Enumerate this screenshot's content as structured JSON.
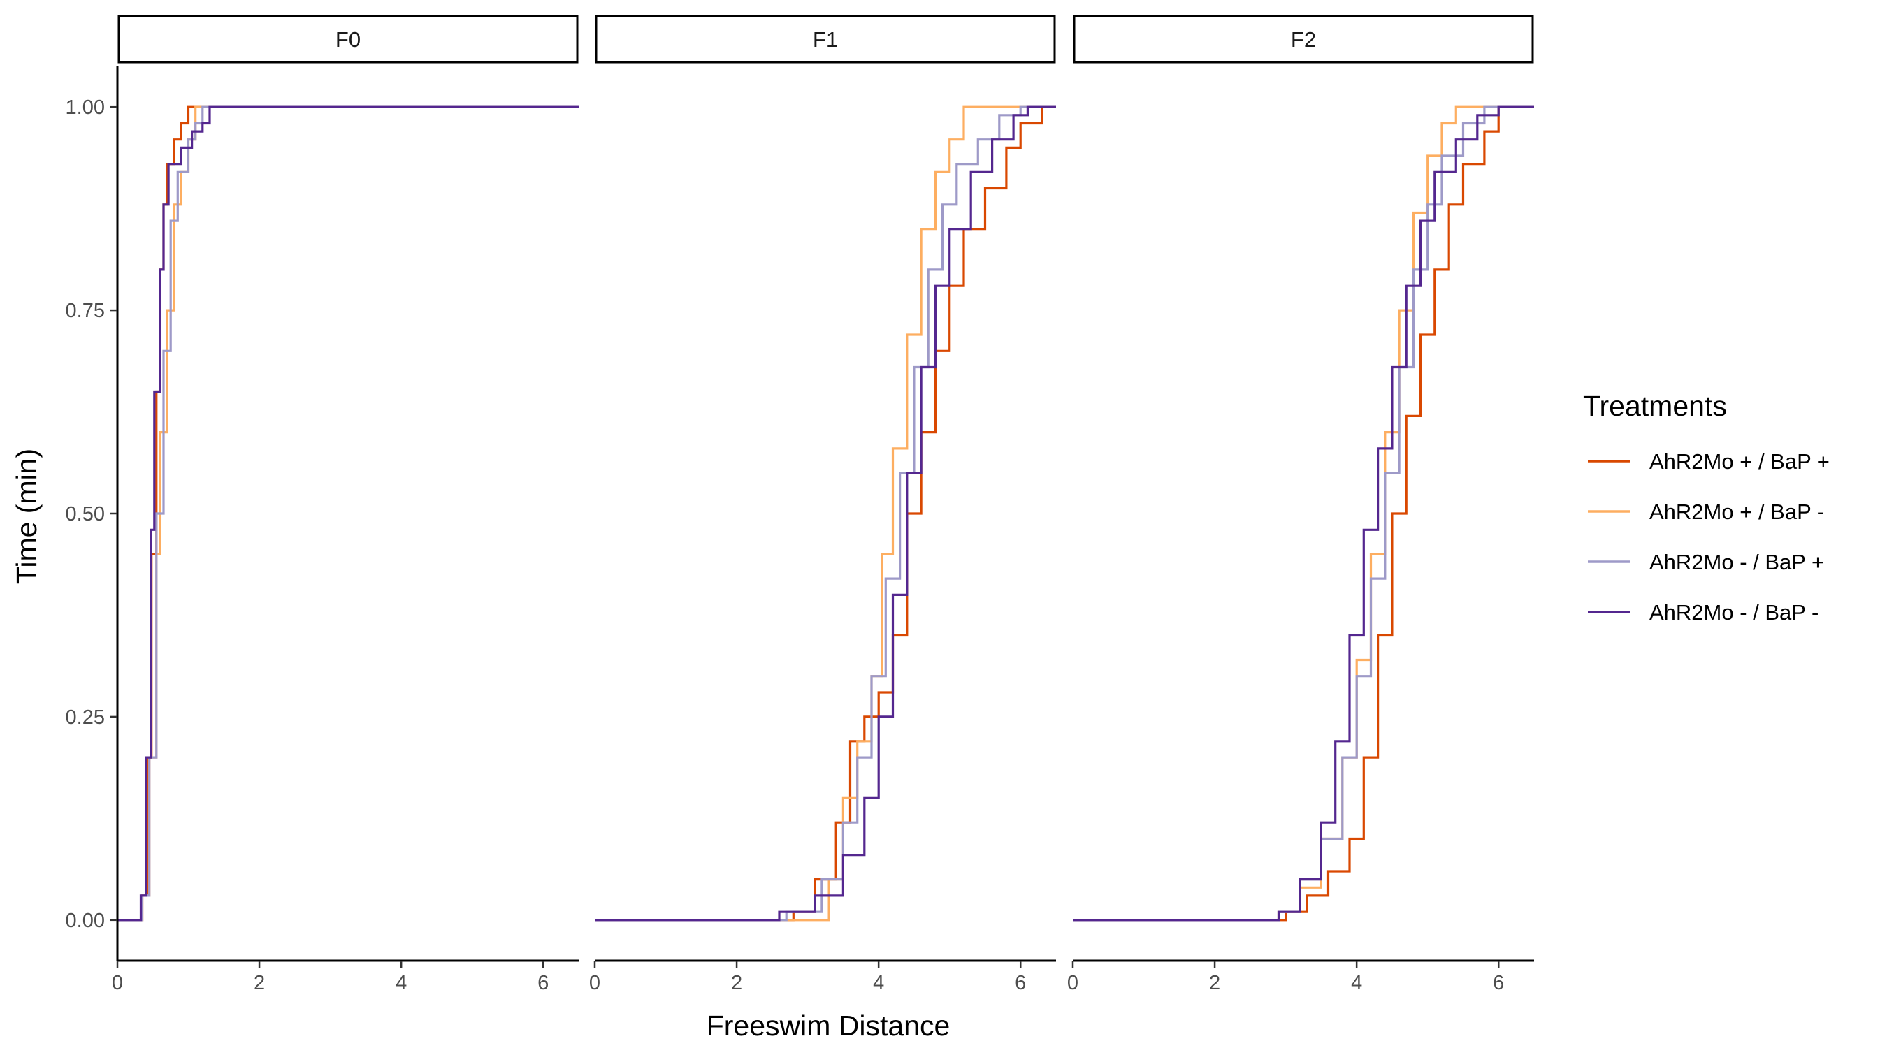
{
  "chart_data": {
    "type": "line",
    "step": true,
    "xlabel": "Freeswim Distance",
    "ylabel": "Time (min)",
    "xlim": [
      0,
      6.5
    ],
    "ylim": [
      -0.05,
      1.05
    ],
    "xticks": [
      0,
      2,
      4,
      6
    ],
    "yticks": [
      0.0,
      0.25,
      0.5,
      0.75,
      1.0
    ],
    "ytick_labels": [
      "0.00",
      "0.25",
      "0.50",
      "0.75",
      "1.00"
    ],
    "grid": false,
    "legend": {
      "title": "Treatments",
      "position": "right",
      "entries": [
        {
          "name": "AhR2Mo + / BaP +",
          "color": "#D94801"
        },
        {
          "name": "AhR2Mo + / BaP -",
          "color": "#FDAE61"
        },
        {
          "name": "AhR2Mo - / BaP +",
          "color": "#9E9AC8"
        },
        {
          "name": "AhR2Mo - / BaP -",
          "color": "#54278F"
        }
      ]
    },
    "panels": [
      {
        "label": "F0",
        "series": [
          {
            "name": "AhR2Mo + / BaP +",
            "color": "#D94801",
            "x": [
              0,
              0.35,
              0.42,
              0.48,
              0.55,
              0.6,
              0.65,
              0.7,
              0.8,
              0.9,
              1.0,
              6.5
            ],
            "y": [
              0,
              0.03,
              0.2,
              0.45,
              0.65,
              0.8,
              0.88,
              0.93,
              0.96,
              0.98,
              1.0,
              1.0
            ]
          },
          {
            "name": "AhR2Mo + / BaP -",
            "color": "#FDAE61",
            "x": [
              0,
              0.35,
              0.45,
              0.55,
              0.6,
              0.7,
              0.8,
              0.9,
              1.0,
              1.1,
              6.5
            ],
            "y": [
              0,
              0.03,
              0.2,
              0.45,
              0.6,
              0.75,
              0.88,
              0.92,
              0.96,
              1.0,
              1.0
            ]
          },
          {
            "name": "AhR2Mo - / BaP +",
            "color": "#9E9AC8",
            "x": [
              0,
              0.35,
              0.45,
              0.55,
              0.65,
              0.75,
              0.85,
              1.0,
              1.1,
              1.2,
              6.5
            ],
            "y": [
              0,
              0.03,
              0.2,
              0.5,
              0.7,
              0.86,
              0.92,
              0.96,
              0.98,
              1.0,
              1.0
            ]
          },
          {
            "name": "AhR2Mo - / BaP -",
            "color": "#54278F",
            "x": [
              0,
              0.33,
              0.4,
              0.47,
              0.52,
              0.6,
              0.65,
              0.72,
              0.9,
              1.05,
              1.2,
              1.3,
              6.5
            ],
            "y": [
              0,
              0.03,
              0.2,
              0.48,
              0.65,
              0.8,
              0.88,
              0.93,
              0.95,
              0.97,
              0.98,
              1.0,
              1.0
            ]
          }
        ]
      },
      {
        "label": "F1",
        "series": [
          {
            "name": "AhR2Mo + / BaP +",
            "color": "#D94801",
            "x": [
              0,
              2.8,
              3.1,
              3.4,
              3.6,
              3.8,
              4.0,
              4.2,
              4.4,
              4.6,
              4.8,
              5.0,
              5.2,
              5.5,
              5.8,
              6.0,
              6.3,
              6.5
            ],
            "y": [
              0,
              0.01,
              0.05,
              0.12,
              0.22,
              0.25,
              0.28,
              0.35,
              0.5,
              0.6,
              0.7,
              0.78,
              0.85,
              0.9,
              0.95,
              0.98,
              1.0,
              1.0
            ]
          },
          {
            "name": "AhR2Mo + / BaP -",
            "color": "#FDAE61",
            "x": [
              0,
              2.6,
              3.3,
              3.5,
              3.7,
              3.9,
              4.05,
              4.2,
              4.4,
              4.6,
              4.8,
              5.0,
              5.2,
              6.5
            ],
            "y": [
              0,
              0.0,
              0.05,
              0.15,
              0.22,
              0.3,
              0.45,
              0.58,
              0.72,
              0.85,
              0.92,
              0.96,
              1.0,
              1.0
            ]
          },
          {
            "name": "AhR2Mo - / BaP +",
            "color": "#9E9AC8",
            "x": [
              0,
              2.7,
              3.2,
              3.5,
              3.7,
              3.9,
              4.1,
              4.3,
              4.5,
              4.7,
              4.9,
              5.1,
              5.4,
              5.7,
              6.0,
              6.5
            ],
            "y": [
              0,
              0.01,
              0.05,
              0.12,
              0.2,
              0.3,
              0.42,
              0.55,
              0.68,
              0.8,
              0.88,
              0.93,
              0.96,
              0.99,
              1.0,
              1.0
            ]
          },
          {
            "name": "AhR2Mo - / BaP -",
            "color": "#54278F",
            "x": [
              0,
              2.6,
              3.1,
              3.5,
              3.8,
              4.0,
              4.2,
              4.4,
              4.6,
              4.8,
              5.0,
              5.3,
              5.6,
              5.9,
              6.1,
              6.5
            ],
            "y": [
              0,
              0.01,
              0.03,
              0.08,
              0.15,
              0.25,
              0.4,
              0.55,
              0.68,
              0.78,
              0.85,
              0.92,
              0.96,
              0.99,
              1.0,
              1.0
            ]
          }
        ]
      },
      {
        "label": "F2",
        "series": [
          {
            "name": "AhR2Mo + / BaP +",
            "color": "#D94801",
            "x": [
              0,
              3.0,
              3.3,
              3.6,
              3.9,
              4.1,
              4.3,
              4.5,
              4.7,
              4.9,
              5.1,
              5.3,
              5.5,
              5.8,
              6.0,
              6.5
            ],
            "y": [
              0,
              0.01,
              0.03,
              0.06,
              0.1,
              0.2,
              0.35,
              0.5,
              0.62,
              0.72,
              0.8,
              0.88,
              0.93,
              0.97,
              1.0,
              1.0
            ]
          },
          {
            "name": "AhR2Mo + / BaP -",
            "color": "#FDAE61",
            "x": [
              0,
              2.9,
              3.2,
              3.5,
              3.8,
              4.0,
              4.2,
              4.4,
              4.6,
              4.8,
              5.0,
              5.2,
              5.4,
              6.5
            ],
            "y": [
              0,
              0.01,
              0.04,
              0.1,
              0.2,
              0.32,
              0.45,
              0.6,
              0.75,
              0.87,
              0.94,
              0.98,
              1.0,
              1.0
            ]
          },
          {
            "name": "AhR2Mo - / BaP +",
            "color": "#9E9AC8",
            "x": [
              0,
              2.9,
              3.2,
              3.5,
              3.8,
              4.0,
              4.2,
              4.4,
              4.6,
              4.8,
              5.0,
              5.2,
              5.5,
              5.8,
              6.5
            ],
            "y": [
              0,
              0.01,
              0.05,
              0.1,
              0.2,
              0.3,
              0.42,
              0.55,
              0.68,
              0.8,
              0.88,
              0.94,
              0.98,
              1.0,
              1.0
            ]
          },
          {
            "name": "AhR2Mo - / BaP -",
            "color": "#54278F",
            "x": [
              0,
              2.9,
              3.2,
              3.5,
              3.7,
              3.9,
              4.1,
              4.3,
              4.5,
              4.7,
              4.9,
              5.1,
              5.4,
              5.7,
              6.0,
              6.5
            ],
            "y": [
              0,
              0.01,
              0.05,
              0.12,
              0.22,
              0.35,
              0.48,
              0.58,
              0.68,
              0.78,
              0.86,
              0.92,
              0.96,
              0.99,
              1.0,
              1.0
            ]
          }
        ]
      }
    ]
  }
}
